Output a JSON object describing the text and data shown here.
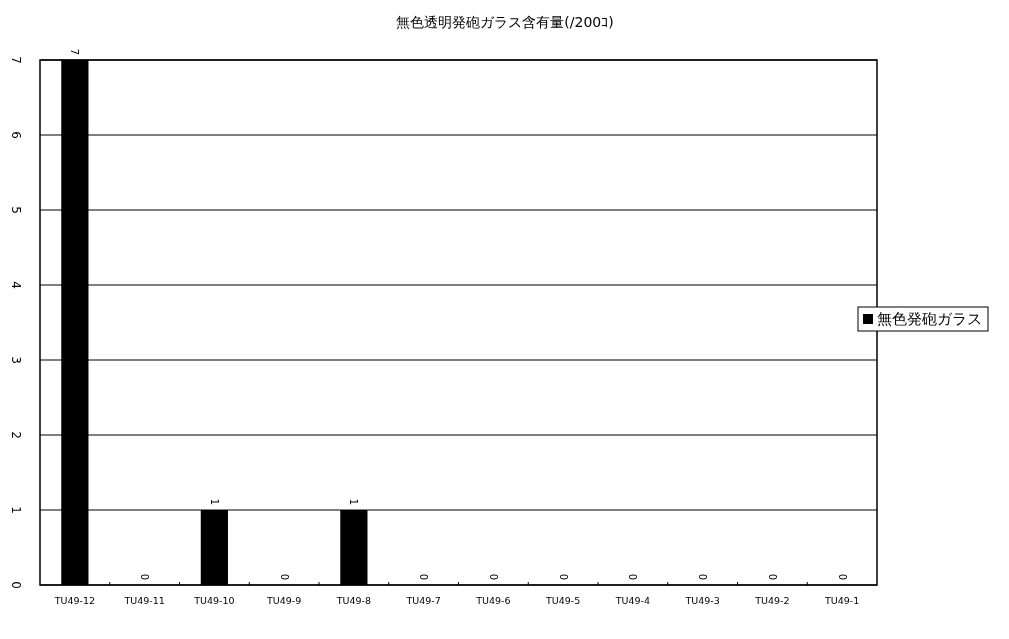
{
  "chart_data": {
    "type": "bar",
    "title": "無色透明発砲ガラス含有量(/200ｺ)",
    "categories": [
      "TU49-12",
      "TU49-11",
      "TU49-10",
      "TU49-9",
      "TU49-8",
      "TU49-7",
      "TU49-6",
      "TU49-5",
      "TU49-4",
      "TU49-3",
      "TU49-2",
      "TU49-1"
    ],
    "series": [
      {
        "name": "無色発砲ガラス",
        "color": "#000000",
        "values": [
          7,
          0,
          1,
          0,
          1,
          0,
          0,
          0,
          0,
          0,
          0,
          0
        ]
      }
    ],
    "ylim": [
      0,
      7
    ],
    "yticks": [
      0,
      1,
      2,
      3,
      4,
      5,
      6,
      7
    ],
    "grid": "y",
    "legend": "right",
    "data_labels": true
  }
}
